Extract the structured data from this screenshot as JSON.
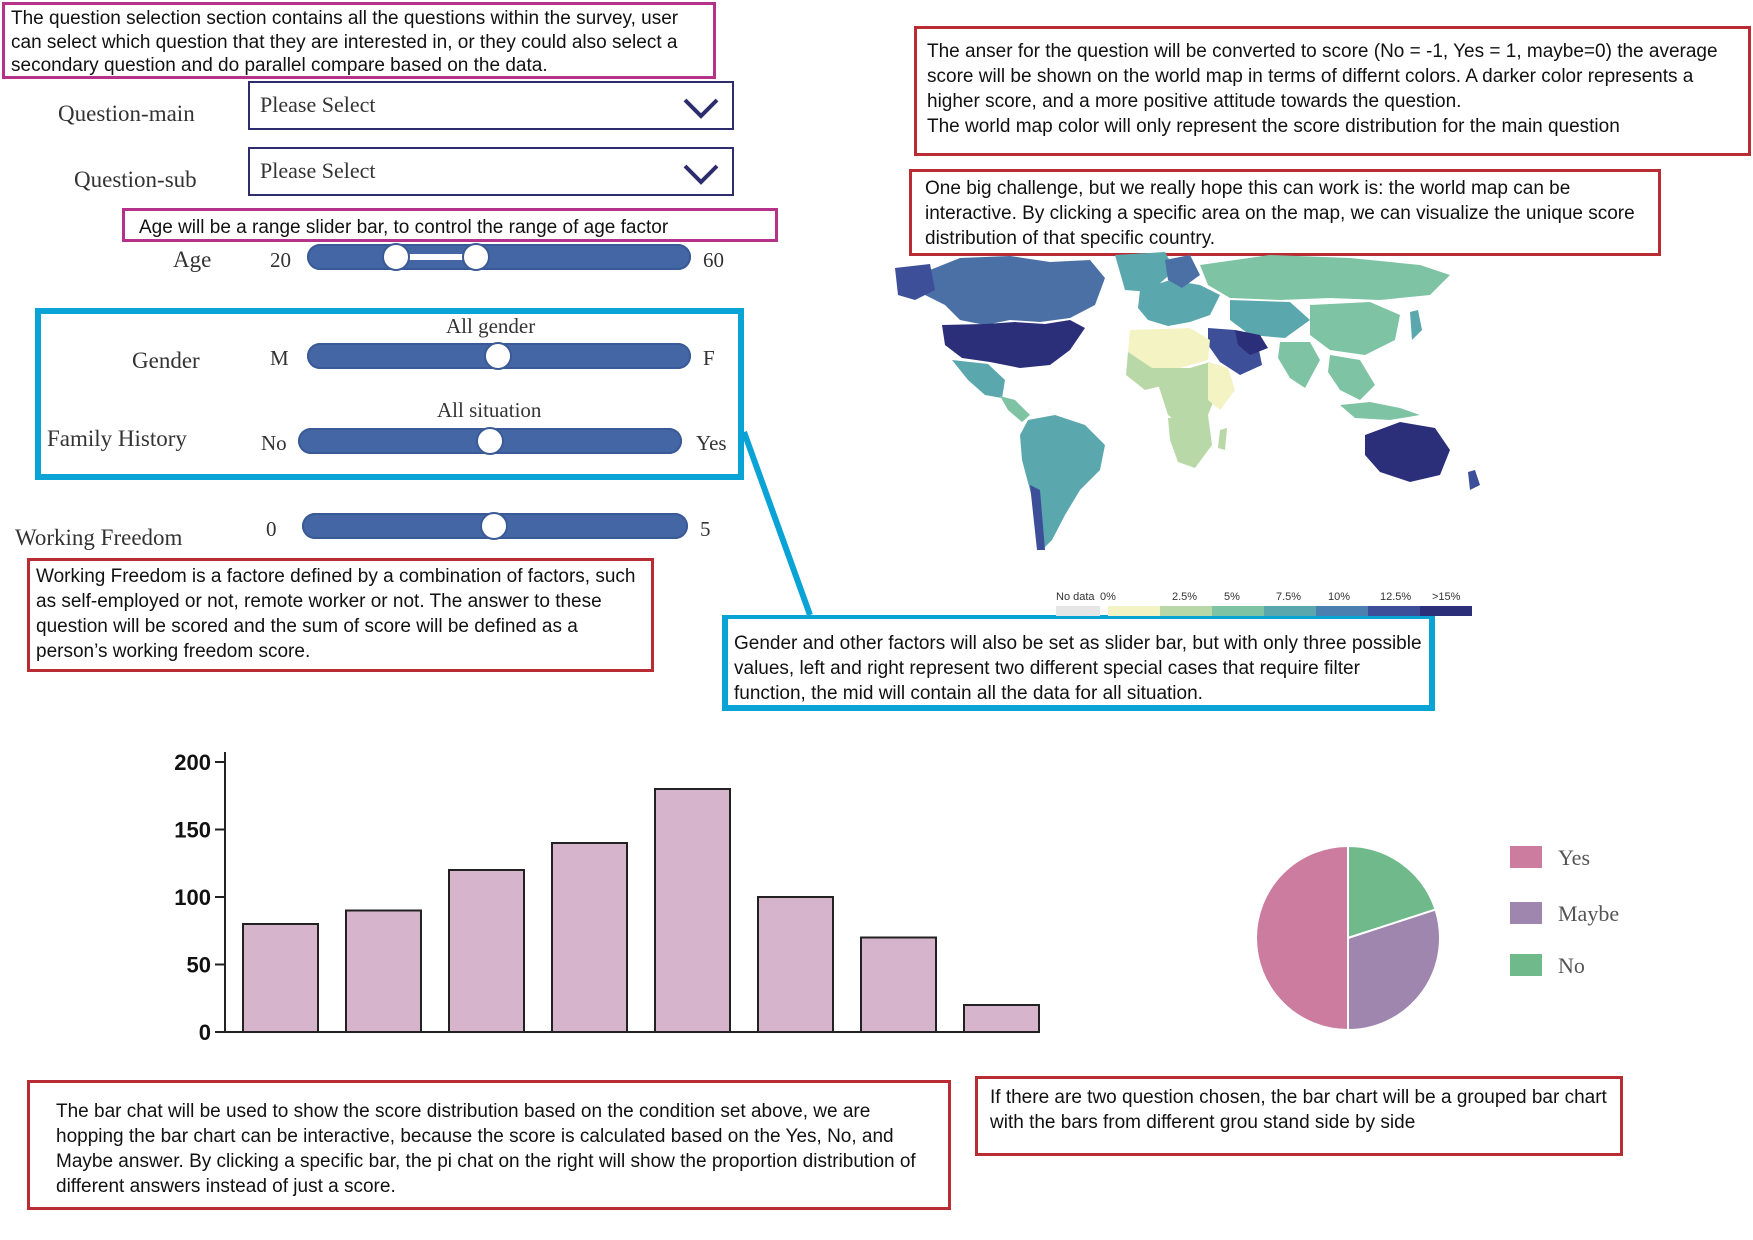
{
  "notes": {
    "question_selection": "The question selection section contains all the questions within the survey, user can select which question that they are interested in, or they could also select a secondary question and do parallel compare based on the data.",
    "answer_score": "The anser for the question will be converted to score (No = -1, Yes = 1, maybe=0) the average score will be shown on the world map in terms of differnt colors. A darker color represents a higher score, and a more positive attitude towards the question.\nThe world map color will only represent the score distribution for the main question",
    "map_interactive": "One big challenge, but we really hope this can work is: the world map can be interactive. By clicking a specific area on the map, we can visualize the unique score distribution of that specific country.",
    "age_slider": "Age will be a range slider bar, to control the range of age factor",
    "working_freedom": "Working Freedom is a factore defined by a combination of factors, such as self-employed or not, remote worker or not. The answer to these question will be scored and the sum of score will be defined as a person’s working freedom score.",
    "gender_slider": "Gender and other factors will also be set as slider bar, but with only three possible values, left and right represent two different special cases that require filter function, the mid will contain all the data for all situation.",
    "bar_chart": "The bar chat will be used to show the score distribution based on the condition set above, we are hopping the bar chart can be interactive, because the score is calculated based on the Yes, No, and Maybe answer. By clicking a specific bar, the pi chat on the right will show the proportion distribution of different answers instead of just a score.",
    "grouped_bar": "If there are two question chosen, the bar chart will be a grouped bar chart with the bars from different grou stand side by side"
  },
  "questions": {
    "main_label": "Question-main",
    "main_value": "Please Select",
    "sub_label": "Question-sub",
    "sub_value": "Please Select"
  },
  "sliders": {
    "age": {
      "label": "Age",
      "min": "20",
      "max": "60"
    },
    "gender": {
      "label": "Gender",
      "left": "M",
      "right": "F",
      "mid": "All gender"
    },
    "family": {
      "label": "Family History",
      "left": "No",
      "right": "Yes",
      "mid": "All situation"
    },
    "freedom": {
      "label": "Working Freedom",
      "min": "0",
      "max": "5"
    }
  },
  "map_legend": {
    "labels": [
      "No data",
      "0%",
      "2.5%",
      "5%",
      "7.5%",
      "10%",
      "12.5%",
      ">15%"
    ],
    "colors": [
      "#e6e6e6",
      "#f4f3c4",
      "#b9d8a8",
      "#7fc3a5",
      "#5aa7ad",
      "#4a7fb0",
      "#3d4f99",
      "#2b2f7a"
    ]
  },
  "chart_data": [
    {
      "type": "bar",
      "categories": [
        "",
        "",
        "",
        "",
        "",
        "",
        "",
        ""
      ],
      "values": [
        80,
        90,
        120,
        140,
        180,
        100,
        70,
        20
      ],
      "yticks": [
        "0",
        "50",
        "100",
        "150",
        "200"
      ],
      "ylim": [
        0,
        200
      ],
      "color": "#d6b4cc"
    },
    {
      "type": "pie",
      "labels": [
        "Yes",
        "Maybe",
        "No"
      ],
      "values": [
        50,
        30,
        20
      ],
      "colors": [
        "#cc7d9f",
        "#9e86ae",
        "#6fb98a"
      ],
      "legend": "right"
    }
  ]
}
